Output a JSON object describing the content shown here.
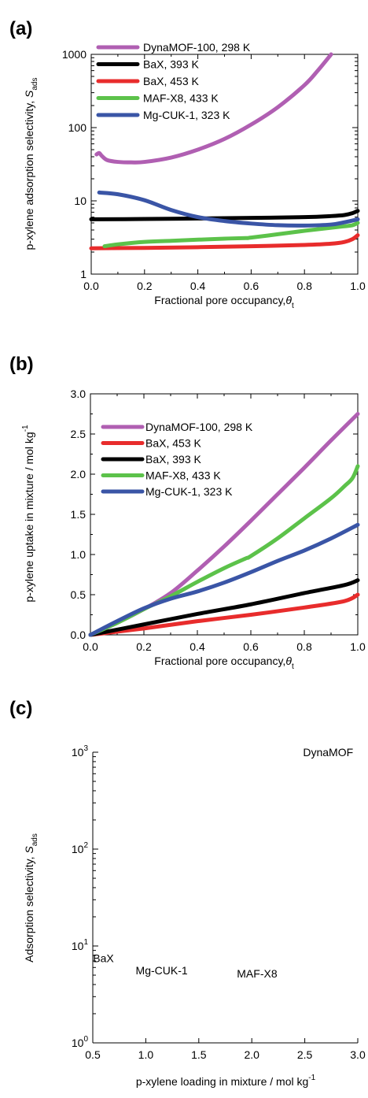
{
  "chart_data": [
    {
      "type": "line",
      "panel_label": "(a)",
      "xlabel": "Fractional pore occupancy,",
      "xlabel_symbol": "θ",
      "xlabel_sub": "t",
      "ylabel": "p-xylene adsorption selectivity,",
      "ylabel_symbol": "S",
      "ylabel_sub": "ads",
      "xlim": [
        0,
        1
      ],
      "ylim": [
        1,
        1000
      ],
      "yscale": "log",
      "xticks": [
        "0.0",
        "0.2",
        "0.4",
        "0.6",
        "0.8",
        "1.0"
      ],
      "yticks": [
        "1",
        "10",
        "100",
        "1000"
      ],
      "legend_position": "top-left",
      "series": [
        {
          "name": "DynaMOF-100, 298 K",
          "color": "#b05fb2",
          "x": [
            0.02,
            0.03,
            0.04,
            0.06,
            0.1,
            0.15,
            0.2,
            0.3,
            0.4,
            0.5,
            0.6,
            0.7,
            0.8,
            0.85,
            0.9
          ],
          "y": [
            43,
            45,
            41,
            36,
            34,
            33.5,
            34,
            39,
            50,
            70,
            110,
            190,
            380,
            600,
            1000
          ]
        },
        {
          "name": "BaX,  393 K",
          "color": "#000000",
          "x": [
            0.0,
            0.2,
            0.4,
            0.6,
            0.8,
            0.9,
            0.95,
            0.98,
            1.0
          ],
          "y": [
            5.6,
            5.65,
            5.75,
            5.85,
            6.0,
            6.2,
            6.4,
            6.8,
            7.3
          ]
        },
        {
          "name": "BaX,  453 K",
          "color": "#e82c2c",
          "x": [
            0.0,
            0.2,
            0.4,
            0.6,
            0.8,
            0.9,
            0.95,
            0.98,
            1.0
          ],
          "y": [
            2.25,
            2.28,
            2.33,
            2.4,
            2.5,
            2.6,
            2.75,
            3.0,
            3.4
          ]
        },
        {
          "name": "MAF-X8, 433 K",
          "color": "#5cc24a",
          "x": [
            0.05,
            0.1,
            0.2,
            0.3,
            0.4,
            0.5,
            0.58,
            0.6,
            0.7,
            0.8,
            0.9,
            0.95,
            0.98,
            1.0
          ],
          "y": [
            2.4,
            2.55,
            2.75,
            2.85,
            2.95,
            3.05,
            3.1,
            3.15,
            3.5,
            3.9,
            4.3,
            4.5,
            4.65,
            5.0
          ]
        },
        {
          "name": "Mg-CUK-1, 323 K",
          "color": "#3a55a6",
          "x": [
            0.03,
            0.1,
            0.2,
            0.3,
            0.4,
            0.5,
            0.6,
            0.7,
            0.8,
            0.9,
            0.95,
            1.0
          ],
          "y": [
            13,
            12.3,
            10.2,
            7.5,
            6.0,
            5.3,
            4.9,
            4.65,
            4.6,
            4.75,
            5.1,
            5.6
          ]
        }
      ]
    },
    {
      "type": "line",
      "panel_label": "(b)",
      "xlabel": "Fractional pore occupancy,",
      "xlabel_symbol": "θ",
      "xlabel_sub": "t",
      "ylabel": "p-xylene uptake in mixture / mol kg",
      "ylabel_sup": "-1",
      "xlim": [
        0,
        1
      ],
      "ylim": [
        0,
        3
      ],
      "yscale": "linear",
      "xticks": [
        "0.0",
        "0.2",
        "0.4",
        "0.6",
        "0.8",
        "1.0"
      ],
      "yticks": [
        "0.0",
        "0.5",
        "1.0",
        "1.5",
        "2.0",
        "2.5",
        "3.0"
      ],
      "legend_position": "top-left",
      "series": [
        {
          "name": "DynaMOF-100, 298 K",
          "color": "#b05fb2",
          "x": [
            0.0,
            0.1,
            0.2,
            0.3,
            0.4,
            0.5,
            0.6,
            0.7,
            0.8,
            0.9,
            1.0
          ],
          "y": [
            0.0,
            0.15,
            0.32,
            0.52,
            0.8,
            1.1,
            1.42,
            1.75,
            2.08,
            2.42,
            2.75
          ]
        },
        {
          "name": "BaX,  453 K",
          "color": "#e82c2c",
          "x": [
            0.0,
            0.2,
            0.4,
            0.6,
            0.8,
            0.95,
            1.0
          ],
          "y": [
            0.0,
            0.08,
            0.17,
            0.25,
            0.34,
            0.42,
            0.5
          ]
        },
        {
          "name": "BaX,  393 K",
          "color": "#000000",
          "x": [
            0.0,
            0.2,
            0.4,
            0.6,
            0.8,
            0.95,
            1.0
          ],
          "y": [
            0.0,
            0.13,
            0.26,
            0.38,
            0.52,
            0.62,
            0.68
          ]
        },
        {
          "name": "MAF-X8,  433 K",
          "color": "#5cc24a",
          "x": [
            0.0,
            0.1,
            0.2,
            0.3,
            0.4,
            0.5,
            0.58,
            0.6,
            0.7,
            0.8,
            0.9,
            0.95,
            0.98,
            1.0
          ],
          "y": [
            0.0,
            0.15,
            0.32,
            0.48,
            0.66,
            0.83,
            0.95,
            0.98,
            1.2,
            1.45,
            1.7,
            1.85,
            1.95,
            2.1
          ]
        },
        {
          "name": "Mg-CUK-1, 323 K",
          "color": "#3a55a6",
          "x": [
            0.0,
            0.1,
            0.2,
            0.3,
            0.4,
            0.5,
            0.6,
            0.7,
            0.8,
            0.9,
            1.0
          ],
          "y": [
            0.0,
            0.17,
            0.33,
            0.45,
            0.54,
            0.65,
            0.78,
            0.92,
            1.05,
            1.2,
            1.37
          ]
        }
      ]
    },
    {
      "type": "scatter",
      "panel_label": "(c)",
      "xlabel": "p-xylene loading in mixture / mol kg",
      "xlabel_sup": "-1",
      "ylabel": "Adsorption selectivity,",
      "ylabel_symbol": "S",
      "ylabel_sub": "ads",
      "xlim": [
        0.5,
        3.0
      ],
      "ylim": [
        1,
        1000
      ],
      "yscale": "log",
      "xticks": [
        "0.5",
        "1.0",
        "1.5",
        "2.0",
        "2.5",
        "3.0"
      ],
      "yticks": [
        {
          "base": "10",
          "exp": "0"
        },
        {
          "base": "10",
          "exp": "1"
        },
        {
          "base": "10",
          "exp": "2"
        },
        {
          "base": "10",
          "exp": "3"
        }
      ],
      "annotations": [
        {
          "text": "DynaMOF",
          "x": 2.72,
          "y": 1000
        },
        {
          "text": "BaX",
          "x": 0.6,
          "y": 7.5
        },
        {
          "text": "Mg-CUK-1",
          "x": 1.15,
          "y": 5.6
        },
        {
          "text": "MAF-X8",
          "x": 2.05,
          "y": 5.2
        }
      ]
    }
  ]
}
